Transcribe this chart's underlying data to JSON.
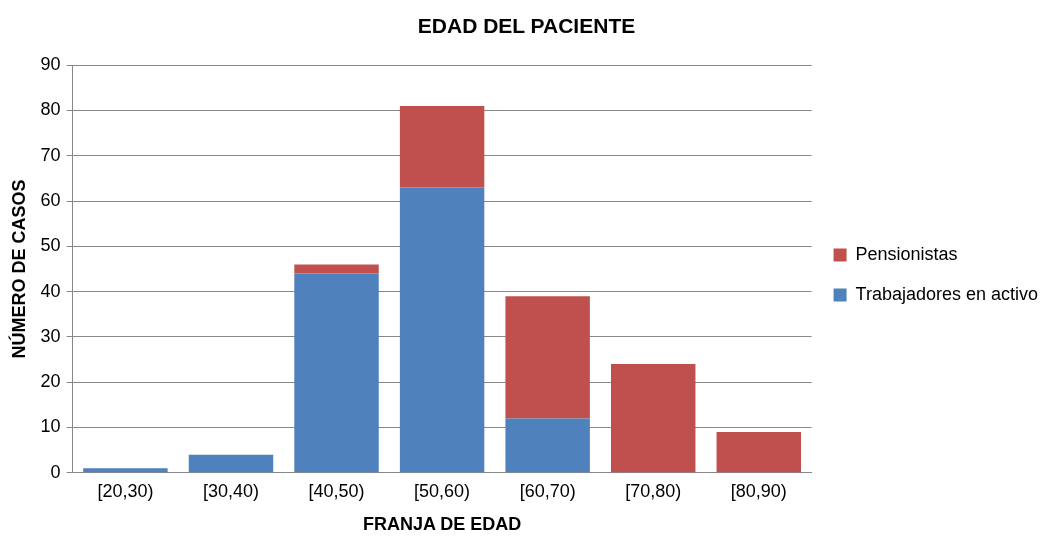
{
  "chart_data": {
    "type": "bar",
    "title": "EDAD DEL PACIENTE",
    "xlabel": "FRANJA DE EDAD",
    "ylabel": "NÚMERO DE CASOS",
    "categories": [
      "[20,30)",
      "[30,40)",
      "[40,50)",
      "[50,60)",
      "[60,70)",
      "[70,80)",
      "[80,90)"
    ],
    "series": [
      {
        "name": "Trabajadores en activo",
        "color": "#4f81bd",
        "values": [
          1,
          4,
          44,
          63,
          12,
          0,
          0
        ]
      },
      {
        "name": "Pensionistas",
        "color": "#c0504d",
        "values": [
          0,
          0,
          2,
          18,
          27,
          24,
          9
        ]
      }
    ],
    "stacked": true,
    "ylim": [
      0,
      90
    ],
    "yticks": [
      0,
      10,
      20,
      30,
      40,
      50,
      60,
      70,
      80,
      90
    ],
    "grid": "y",
    "legend": "right"
  }
}
